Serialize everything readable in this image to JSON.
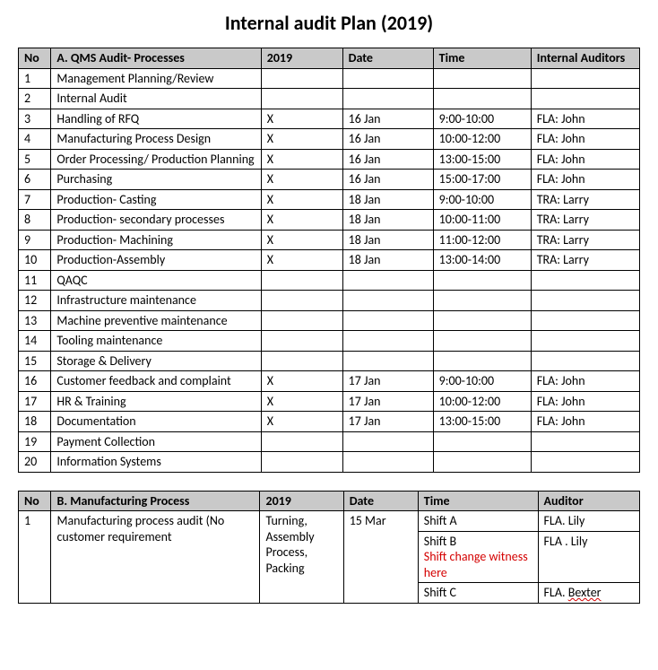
{
  "title": "Internal audit Plan (2019)",
  "tableA": {
    "headers": {
      "no": "No",
      "process": "A. QMS Audit- Processes",
      "year": "2019",
      "date": "Date",
      "time": "Time",
      "auditors": "Internal Auditors"
    },
    "rows": [
      {
        "no": "1",
        "process": "Management Planning/Review",
        "year": "",
        "date": "",
        "time": "",
        "auditors": ""
      },
      {
        "no": "2",
        "process": "Internal Audit",
        "year": "",
        "date": "",
        "time": "",
        "auditors": ""
      },
      {
        "no": "3",
        "process": "Handling of RFQ",
        "year": "X",
        "date": "16 Jan",
        "time": "9:00-10:00",
        "auditors": "FLA: John"
      },
      {
        "no": "4",
        "process": "Manufacturing Process Design",
        "year": "X",
        "date": "16 Jan",
        "time": "10:00-12:00",
        "auditors": "FLA: John"
      },
      {
        "no": "5",
        "process": "Order Processing/ Production Planning",
        "year": "X",
        "date": "16 Jan",
        "time": "13:00-15:00",
        "auditors": "FLA: John"
      },
      {
        "no": "6",
        "process": "Purchasing",
        "year": "X",
        "date": "16 Jan",
        "time": "15:00-17:00",
        "auditors": "FLA: John"
      },
      {
        "no": "7",
        "process": "Production- Casting",
        "year": "X",
        "date": "18 Jan",
        "time": "9:00-10:00",
        "auditors": "TRA: Larry"
      },
      {
        "no": "8",
        "process": "Production- secondary processes",
        "year": "X",
        "date": "18 Jan",
        "time": "10:00-11:00",
        "auditors": "TRA: Larry"
      },
      {
        "no": "9",
        "process": "Production- Machining",
        "year": "X",
        "date": "18 Jan",
        "time": "11:00-12:00",
        "auditors": "TRA: Larry"
      },
      {
        "no": "10",
        "process": "Production-Assembly",
        "year": "X",
        "date": "18 Jan",
        "time": "13:00-14:00",
        "auditors": "TRA: Larry"
      },
      {
        "no": "11",
        "process": "QAQC",
        "year": "",
        "date": "",
        "time": "",
        "auditors": ""
      },
      {
        "no": "12",
        "process": "Infrastructure maintenance",
        "year": "",
        "date": "",
        "time": "",
        "auditors": ""
      },
      {
        "no": "13",
        "process": "Machine preventive maintenance",
        "year": "",
        "date": "",
        "time": "",
        "auditors": ""
      },
      {
        "no": "14",
        "process": "Tooling maintenance",
        "year": "",
        "date": "",
        "time": "",
        "auditors": ""
      },
      {
        "no": "15",
        "process": "Storage & Delivery",
        "year": "",
        "date": "",
        "time": "",
        "auditors": ""
      },
      {
        "no": "16",
        "process": "Customer feedback and complaint",
        "year": "X",
        "date": "17 Jan",
        "time": "9:00-10:00",
        "auditors": "FLA: John"
      },
      {
        "no": "17",
        "process": "HR & Training",
        "year": "X",
        "date": "17 Jan",
        "time": "10:00-12:00",
        "auditors": "FLA: John"
      },
      {
        "no": "18",
        "process": "Documentation",
        "year": "X",
        "date": "17 Jan",
        "time": "13:00-15:00",
        "auditors": "FLA: John"
      },
      {
        "no": "19",
        "process": "Payment Collection",
        "year": "",
        "date": "",
        "time": "",
        "auditors": ""
      },
      {
        "no": "20",
        "process": "Information Systems",
        "year": "",
        "date": "",
        "time": "",
        "auditors": ""
      }
    ]
  },
  "tableB": {
    "headers": {
      "no": "No",
      "process": "B. Manufacturing Process",
      "year": "2019",
      "date": "Date",
      "time": "Time",
      "auditor": "Auditor"
    },
    "no": "1",
    "process": "Manufacturing process audit (No customer requirement",
    "year": "Turning, Assembly Process, Packing",
    "date": "15 Mar",
    "shiftA": "Shift A",
    "auditorA": "FLA.  Lily",
    "shiftB": "Shift B",
    "noteB": "Shift change witness here",
    "auditorB": "FLA . Lily",
    "shiftC": "Shift C",
    "auditorC_prefix": "FLA. ",
    "auditorC_name": "Bexter"
  }
}
